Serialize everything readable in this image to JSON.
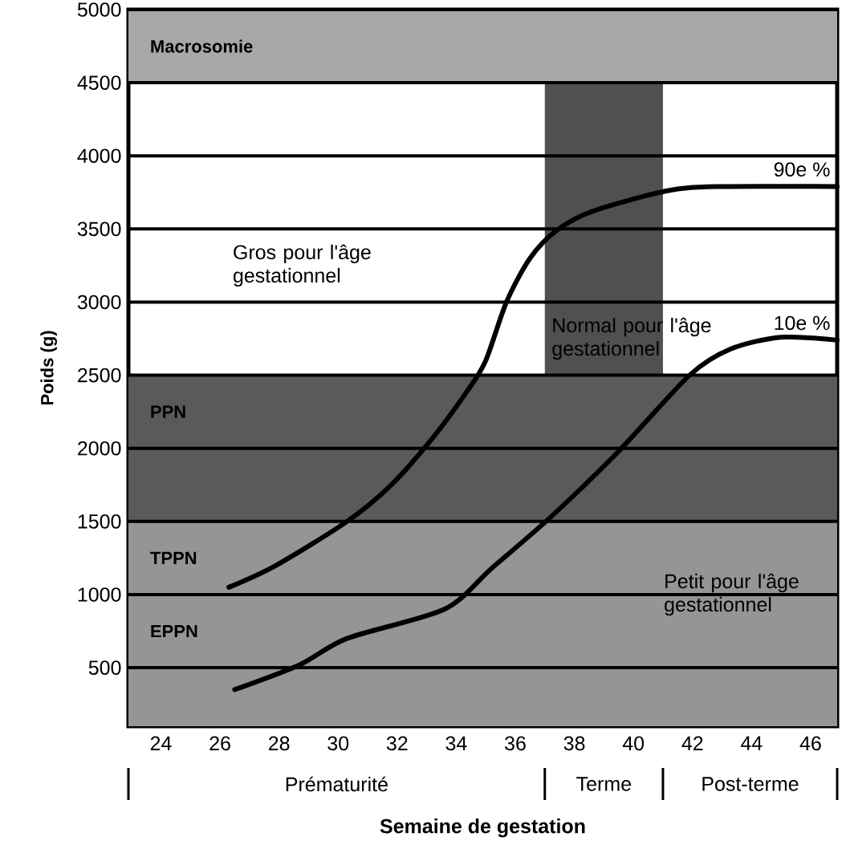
{
  "chart_data": {
    "type": "line",
    "xlabel": "Semaine de gestation",
    "ylabel": "Poids (g)",
    "xlim": [
      22.9,
      46.9
    ],
    "ylim": [
      100,
      5000
    ],
    "xticks": [
      24,
      26,
      28,
      30,
      32,
      34,
      36,
      38,
      40,
      42,
      44,
      46
    ],
    "yticks": [
      500,
      1000,
      1500,
      2000,
      2500,
      3000,
      3500,
      4000,
      4500,
      5000
    ],
    "grid": "y",
    "legend": false,
    "marker": "none",
    "line_style": "solid",
    "series": [
      {
        "name": "90e %",
        "color": "#000000",
        "x": [
          26.3,
          27.9,
          30.3,
          31.8,
          33.2,
          34.4,
          35.0,
          35.7,
          36.5,
          37.4,
          38.6,
          41.1,
          42.8,
          46.9
        ],
        "values": [
          1050,
          1200,
          1500,
          1750,
          2070,
          2400,
          2600,
          3000,
          3300,
          3490,
          3620,
          3760,
          3790,
          3790
        ]
      },
      {
        "name": "10e %",
        "color": "#000000",
        "x": [
          26.5,
          28.7,
          30.3,
          33.6,
          35.2,
          37.2,
          39.5,
          41.9,
          43.3,
          45.0,
          46.9
        ],
        "values": [
          350,
          520,
          700,
          900,
          1180,
          1530,
          1980,
          2500,
          2680,
          2760,
          2740
        ]
      }
    ],
    "bands": [
      {
        "axis": "x",
        "from": 37,
        "to": 41,
        "color": "#505050"
      },
      {
        "axis": "y",
        "from": 4500,
        "to": 5000,
        "label": "Macrosomie",
        "color": "#a8a8a8"
      },
      {
        "axis": "y",
        "from": 1500,
        "to": 2500,
        "label": "PPN",
        "color": "#5a5a5a"
      },
      {
        "axis": "y",
        "from": 1000,
        "to": 1500,
        "label": "TPPN",
        "color": "#959595"
      },
      {
        "axis": "y",
        "from": 500,
        "to": 1000,
        "label": "EPPN",
        "color": "#959595"
      },
      {
        "axis": "y",
        "from": 100,
        "to": 500,
        "color": "#959595"
      }
    ],
    "annotations": [
      "Gros pour l'âge gestationnel",
      "Normal pour l'âge gestationnel",
      "Petit pour l'âge gestationnel",
      "Prématurité",
      "Terme",
      "Post-terme"
    ]
  }
}
